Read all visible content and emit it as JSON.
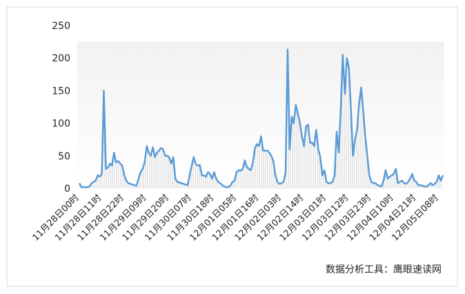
{
  "chart_data": {
    "type": "line",
    "categories": [
      "11月28日00时",
      null,
      null,
      null,
      null,
      null,
      null,
      null,
      null,
      null,
      null,
      "11月28日11时",
      null,
      null,
      null,
      null,
      null,
      null,
      null,
      null,
      null,
      null,
      "11月28日22时",
      null,
      null,
      null,
      null,
      null,
      null,
      null,
      null,
      null,
      null,
      "11月29日09时",
      null,
      null,
      null,
      null,
      null,
      null,
      null,
      null,
      null,
      null,
      "11月29日20时",
      null,
      null,
      null,
      null,
      null,
      null,
      null,
      null,
      null,
      null,
      "11月30日07时",
      null,
      null,
      null,
      null,
      null,
      null,
      null,
      null,
      null,
      null,
      "11月30日18时",
      null,
      null,
      null,
      null,
      null,
      null,
      null,
      null,
      null,
      null,
      "12月01日05时",
      null,
      null,
      null,
      null,
      null,
      null,
      null,
      null,
      null,
      null,
      "12月01日16时",
      null,
      null,
      null,
      null,
      null,
      null,
      null,
      null,
      null,
      null,
      "12月02日03时",
      null,
      null,
      null,
      null,
      null,
      null,
      null,
      null,
      null,
      null,
      "12月02日14时",
      null,
      null,
      null,
      null,
      null,
      null,
      null,
      null,
      null,
      null,
      "12月03日01时",
      null,
      null,
      null,
      null,
      null,
      null,
      null,
      null,
      null,
      null,
      "12月03日12时",
      null,
      null,
      null,
      null,
      null,
      null,
      null,
      null,
      null,
      null,
      "12月03日23时",
      null,
      null,
      null,
      null,
      null,
      null,
      null,
      null,
      null,
      null,
      "12月04日10时",
      null,
      null,
      null,
      null,
      null,
      null,
      null,
      null,
      null,
      null,
      "12月04日21时",
      null,
      null,
      null,
      null,
      null,
      null,
      null,
      null,
      null,
      null,
      "12月05日08时",
      null,
      null
    ],
    "values": [
      8,
      2,
      2,
      2,
      2,
      3,
      8,
      10,
      12,
      20,
      18,
      22,
      150,
      30,
      32,
      38,
      35,
      55,
      40,
      42,
      38,
      35,
      20,
      12,
      8,
      7,
      6,
      5,
      4,
      15,
      25,
      30,
      40,
      65,
      55,
      50,
      63,
      48,
      55,
      58,
      62,
      60,
      50,
      50,
      48,
      38,
      48,
      15,
      10,
      9,
      8,
      7,
      6,
      5,
      20,
      35,
      48,
      37,
      35,
      36,
      20,
      20,
      18,
      25,
      22,
      15,
      25,
      15,
      10,
      8,
      5,
      3,
      2,
      2,
      4,
      10,
      12,
      25,
      28,
      27,
      30,
      43,
      33,
      30,
      28,
      40,
      62,
      68,
      65,
      80,
      58,
      58,
      58,
      55,
      50,
      42,
      20,
      10,
      7,
      8,
      10,
      25,
      213,
      60,
      110,
      100,
      128,
      115,
      100,
      80,
      65,
      95,
      98,
      70,
      70,
      65,
      90,
      60,
      48,
      20,
      28,
      10,
      8,
      8,
      10,
      20,
      87,
      55,
      120,
      205,
      145,
      200,
      185,
      120,
      50,
      75,
      90,
      130,
      155,
      120,
      80,
      50,
      20,
      10,
      8,
      8,
      5,
      4,
      3,
      12,
      28,
      15,
      18,
      20,
      22,
      30,
      8,
      10,
      12,
      8,
      7,
      10,
      15,
      22,
      12,
      10,
      5,
      5,
      4,
      3,
      3,
      5,
      8,
      5,
      7,
      10,
      20,
      12,
      20
    ],
    "color": "#5b9bd5",
    "ylim": [
      0,
      250
    ],
    "yticks": [
      0,
      50,
      100,
      150,
      200,
      250
    ],
    "footer": "数据分析工具：鹰眼速读网"
  }
}
